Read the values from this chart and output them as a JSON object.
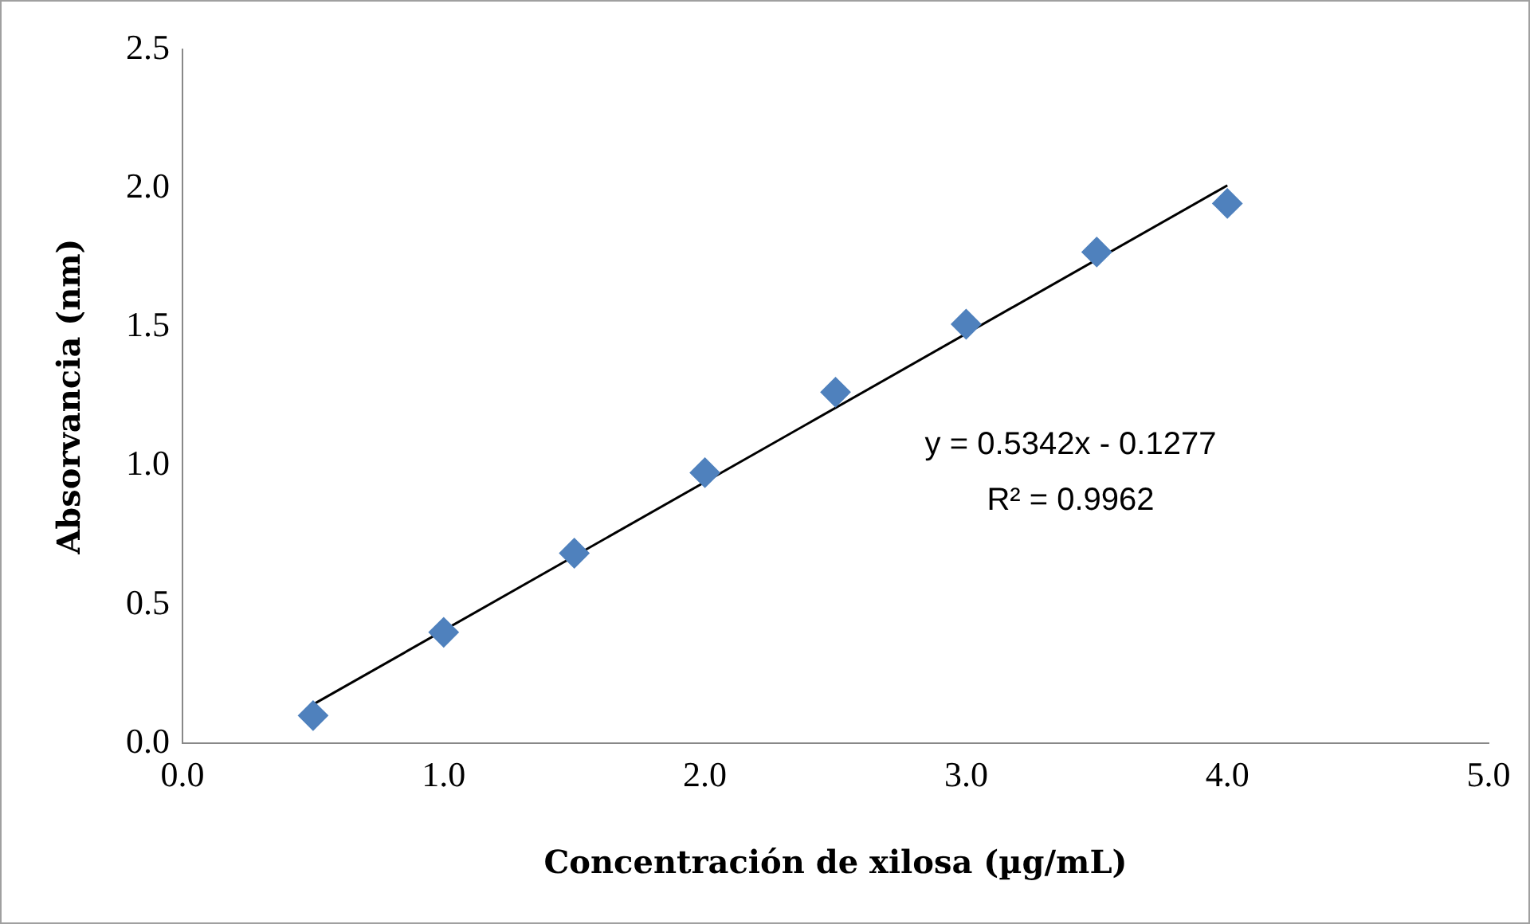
{
  "chart_data": {
    "type": "scatter",
    "xlabel": "Concentración de xilosa (µg/mL)",
    "ylabel": "Absorvancia (nm)",
    "x": [
      0.5,
      1.0,
      1.5,
      2.0,
      2.5,
      3.0,
      3.5,
      4.0
    ],
    "series": [
      {
        "type": "scatter",
        "color": "#4f81bd",
        "marker": "diamond",
        "values": [
          0.1,
          0.4,
          0.685,
          0.975,
          1.265,
          1.51,
          1.77,
          1.945
        ]
      },
      {
        "type": "line",
        "color": "#000000",
        "marker": "none",
        "x": [
          0.5,
          4.0
        ],
        "values": [
          0.14,
          2.01
        ]
      }
    ],
    "xlim": [
      0,
      5
    ],
    "ylim": [
      0,
      2.5
    ],
    "xticks": [
      {
        "value": 0,
        "label": "0.0"
      },
      {
        "value": 1,
        "label": "1.0"
      },
      {
        "value": 2,
        "label": "2.0"
      },
      {
        "value": 3,
        "label": "3.0"
      },
      {
        "value": 4,
        "label": "4.0"
      },
      {
        "value": 5,
        "label": "5.0"
      }
    ],
    "yticks": [
      {
        "value": 0,
        "label": "0.0"
      },
      {
        "value": 0.5,
        "label": "0.5"
      },
      {
        "value": 1,
        "label": "1.0"
      },
      {
        "value": 1.5,
        "label": "1.5"
      },
      {
        "value": 2,
        "label": "2.0"
      },
      {
        "value": 2.5,
        "label": "2.5"
      }
    ],
    "annotations": [
      "y = 0.5342x - 0.1277",
      "R² = 0.9962"
    ],
    "grid": false,
    "legend": false
  }
}
